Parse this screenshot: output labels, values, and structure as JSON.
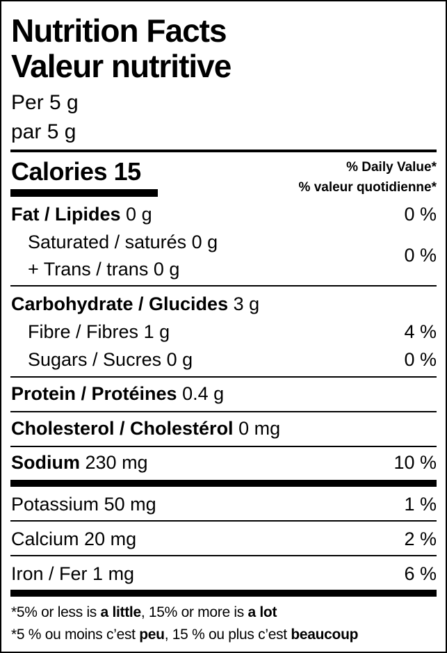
{
  "title_en": "Nutrition Facts",
  "title_fr": "Valeur nutritive",
  "serving_en": "Per 5 g",
  "serving_fr": "par 5 g",
  "calories": {
    "label": "Calories",
    "value": "15"
  },
  "dv_header_en": "% Daily Value*",
  "dv_header_fr": "% valeur quotidienne*",
  "nutrients": {
    "fat": {
      "label": "Fat / Lipides",
      "amount": "0 g",
      "dv": "0 %"
    },
    "saturated": {
      "label": "Saturated / saturés",
      "amount": "0 g"
    },
    "trans": {
      "label": "+ Trans / trans",
      "amount": "0 g"
    },
    "sat_trans_dv": "0 %",
    "carbohydrate": {
      "label": "Carbohydrate / Glucides",
      "amount": "3 g"
    },
    "fibre": {
      "label": "Fibre / Fibres",
      "amount": "1 g",
      "dv": "4 %"
    },
    "sugars": {
      "label": "Sugars / Sucres",
      "amount": "0 g",
      "dv": "0 %"
    },
    "protein": {
      "label": "Protein / Protéines",
      "amount": "0.4 g"
    },
    "cholesterol": {
      "label": "Cholesterol / Cholestérol",
      "amount": "0 mg"
    },
    "sodium": {
      "label": "Sodium",
      "amount": "230 mg",
      "dv": "10 %"
    },
    "potassium": {
      "label": "Potassium",
      "amount": "50 mg",
      "dv": "1 %"
    },
    "calcium": {
      "label": "Calcium",
      "amount": "20 mg",
      "dv": "2 %"
    },
    "iron": {
      "label": "Iron / Fer",
      "amount": "1 mg",
      "dv": "6 %"
    }
  },
  "footnote_en": {
    "a": "*5% or less is ",
    "b": "a little",
    "c": ", 15% or more is ",
    "d": "a lot"
  },
  "footnote_fr": {
    "a": "*5 % ou moins c’est ",
    "b": "peu",
    "c": ", 15 % ou plus c’est ",
    "d": "beaucoup"
  }
}
